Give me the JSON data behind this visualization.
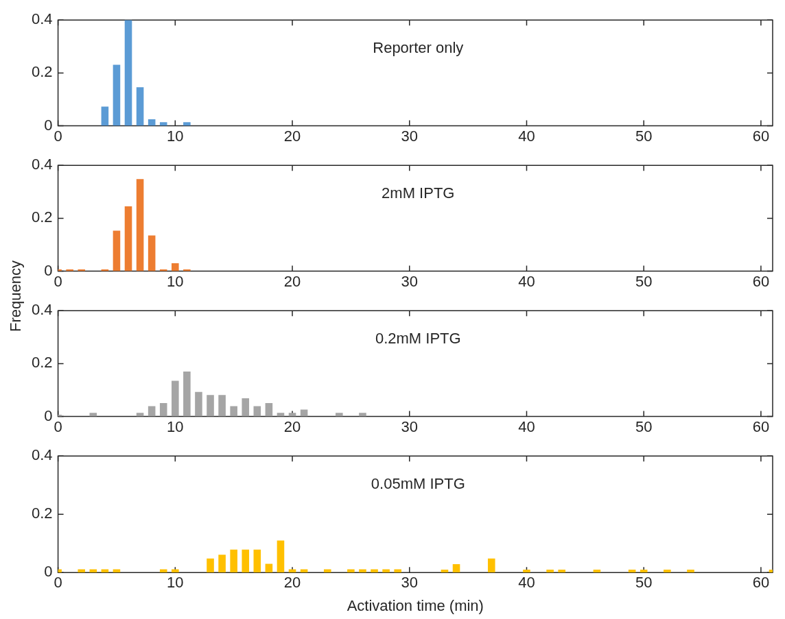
{
  "chart_data": [
    {
      "type": "bar",
      "annotations": [
        "Reporter only"
      ],
      "color": "#5b9bd5",
      "x": [
        4,
        5,
        6,
        7,
        8,
        9,
        11
      ],
      "values": [
        0.073,
        0.231,
        0.4,
        0.146,
        0.025,
        0.014,
        0.014
      ],
      "xlim": [
        0,
        61
      ],
      "xticks": [
        0,
        10,
        20,
        30,
        40,
        50,
        60
      ],
      "ylim": [
        0,
        0.4
      ],
      "yticks": [
        0,
        0.2,
        0.4
      ],
      "grid": false
    },
    {
      "type": "bar",
      "annotations": [
        "2mM IPTG"
      ],
      "color": "#ed7d31",
      "ylabel": "Frequency",
      "x": [
        0,
        1,
        2,
        4,
        5,
        6,
        7,
        8,
        9,
        10,
        11
      ],
      "values": [
        0.007,
        0.007,
        0.007,
        0.007,
        0.153,
        0.245,
        0.348,
        0.135,
        0.007,
        0.03,
        0.007
      ],
      "xlim": [
        0,
        61
      ],
      "xticks": [
        0,
        10,
        20,
        30,
        40,
        50,
        60
      ],
      "ylim": [
        0,
        0.4
      ],
      "yticks": [
        0,
        0.2,
        0.4
      ],
      "grid": false
    },
    {
      "type": "bar",
      "annotations": [
        "0.2mM IPTG"
      ],
      "color": "#a5a5a5",
      "x": [
        0,
        3,
        7,
        8,
        9,
        10,
        11,
        12,
        13,
        14,
        15,
        16,
        17,
        18,
        19,
        20,
        21,
        24,
        26
      ],
      "values": [
        0.007,
        0.014,
        0.014,
        0.039,
        0.051,
        0.135,
        0.17,
        0.093,
        0.081,
        0.081,
        0.039,
        0.069,
        0.039,
        0.051,
        0.014,
        0.014,
        0.026,
        0.014,
        0.014
      ],
      "xlim": [
        0,
        61
      ],
      "xticks": [
        0,
        10,
        20,
        30,
        40,
        50,
        60
      ],
      "ylim": [
        0,
        0.4
      ],
      "yticks": [
        0,
        0.2,
        0.4
      ],
      "grid": false
    },
    {
      "type": "bar",
      "annotations": [
        "0.05mM IPTG"
      ],
      "color": "#ffc000",
      "xlabel": "Activation time (min)",
      "x": [
        0,
        2,
        3,
        4,
        5,
        9,
        10,
        13,
        14,
        15,
        16,
        17,
        18,
        19,
        20,
        21,
        23,
        25,
        26,
        27,
        28,
        29,
        33,
        34,
        37,
        40,
        42,
        43,
        46,
        49,
        50,
        52,
        54,
        61
      ],
      "values": [
        0.011,
        0.011,
        0.011,
        0.011,
        0.011,
        0.011,
        0.011,
        0.048,
        0.061,
        0.079,
        0.079,
        0.079,
        0.03,
        0.11,
        0.011,
        0.011,
        0.011,
        0.011,
        0.011,
        0.011,
        0.011,
        0.011,
        0.01,
        0.029,
        0.048,
        0.01,
        0.01,
        0.01,
        0.01,
        0.01,
        0.01,
        0.01,
        0.01,
        0.01
      ],
      "xlim": [
        0,
        61
      ],
      "xticks": [
        0,
        10,
        20,
        30,
        40,
        50,
        60
      ],
      "ylim": [
        0,
        0.4
      ],
      "yticks": [
        0,
        0.2,
        0.4
      ],
      "grid": false
    }
  ]
}
